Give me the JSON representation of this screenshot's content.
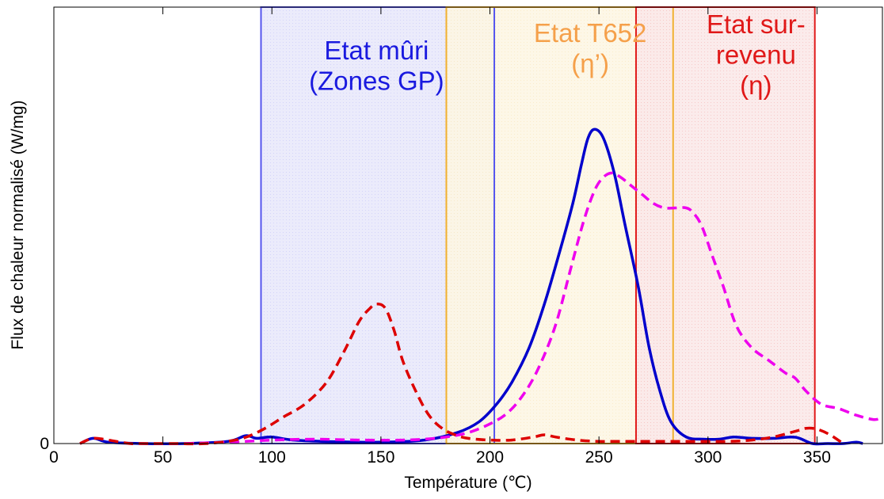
{
  "chart_data": {
    "type": "line",
    "xlabel": "Température (℃)",
    "ylabel": "Flux de chaleur normalisé (W/mg)",
    "xlim": [
      0,
      380
    ],
    "ylim": [
      0,
      1.0
    ],
    "x_ticks": [
      0,
      50,
      100,
      150,
      200,
      250,
      300,
      350
    ],
    "x_tick_labels": [
      "0",
      "50",
      "100",
      "150",
      "200",
      "250",
      "300",
      "350"
    ],
    "y_ticks": [
      0
    ],
    "y_tick_labels": [
      "0"
    ],
    "grid": false,
    "regions": [
      {
        "x": [
          95,
          202
        ],
        "fill": "#e9e9fb",
        "stroke": "#5555ee",
        "label_lines": [
          "Etat mûri",
          "(Zones GP)"
        ],
        "label_color": "#1a1adf",
        "label_x": 148,
        "label_y": [
          0.88,
          0.81
        ]
      },
      {
        "x": [
          180,
          284
        ],
        "fill": "#fdf6e4",
        "stroke": "#f0b030",
        "label_lines": [
          "Etat T652",
          "(η’)"
        ],
        "label_color": "#f5a04a",
        "label_x": 246,
        "label_y": [
          0.92,
          0.85
        ]
      },
      {
        "x": [
          267,
          349
        ],
        "fill": "#fbe9e9",
        "stroke": "#e01818",
        "label_lines": [
          "Etat sur-",
          "revenu",
          "(η)"
        ],
        "label_color": "#e01818",
        "label_x": 322,
        "label_y": [
          0.94,
          0.87,
          0.8
        ]
      }
    ],
    "series": [
      {
        "color": "#0000cc",
        "dash": "solid",
        "x": [
          12,
          18,
          25,
          40,
          60,
          80,
          88,
          93,
          100,
          110,
          130,
          150,
          170,
          185,
          195,
          203,
          210,
          218,
          225,
          232,
          238,
          242,
          245,
          248,
          252,
          257,
          262,
          268,
          273,
          278,
          283,
          290,
          298,
          305,
          312,
          320,
          330,
          338,
          342,
          348,
          355,
          362,
          368,
          371
        ],
        "y": [
          0.0,
          0.012,
          0.003,
          0.0,
          0.0,
          0.005,
          0.018,
          0.012,
          0.015,
          0.008,
          0.004,
          0.003,
          0.008,
          0.025,
          0.05,
          0.09,
          0.14,
          0.22,
          0.32,
          0.44,
          0.55,
          0.64,
          0.7,
          0.72,
          0.7,
          0.62,
          0.5,
          0.36,
          0.22,
          0.12,
          0.05,
          0.015,
          0.01,
          0.01,
          0.015,
          0.012,
          0.012,
          0.015,
          0.012,
          0.0,
          0.0,
          0.0,
          0.003,
          0.0
        ]
      },
      {
        "color": "#ee00ee",
        "dash": "dashed",
        "x": [
          60,
          80,
          100,
          120,
          140,
          160,
          170,
          180,
          190,
          200,
          208,
          215,
          222,
          230,
          237,
          243,
          248,
          252,
          256,
          260,
          265,
          270,
          275,
          280,
          285,
          290,
          293,
          297,
          302,
          307,
          313,
          320,
          328,
          336,
          340,
          345,
          352,
          360,
          368,
          376,
          380
        ],
        "y": [
          0.0,
          0.003,
          0.008,
          0.01,
          0.008,
          0.008,
          0.01,
          0.015,
          0.025,
          0.045,
          0.07,
          0.11,
          0.17,
          0.27,
          0.4,
          0.51,
          0.58,
          0.61,
          0.62,
          0.61,
          0.59,
          0.57,
          0.55,
          0.54,
          0.54,
          0.54,
          0.53,
          0.5,
          0.43,
          0.36,
          0.27,
          0.22,
          0.19,
          0.16,
          0.15,
          0.12,
          0.09,
          0.08,
          0.065,
          0.055,
          0.06
        ]
      },
      {
        "color": "#dd0000",
        "dash": "dashed",
        "x": [
          12,
          18,
          25,
          35,
          40,
          55,
          70,
          85,
          95,
          105,
          115,
          125,
          133,
          140,
          145,
          148,
          152,
          156,
          160,
          166,
          172,
          178,
          184,
          190,
          200,
          210,
          220,
          225,
          230,
          240,
          250,
          260,
          270,
          280,
          290,
          300,
          310,
          320,
          330,
          340,
          345,
          350,
          356,
          362
        ],
        "y": [
          0.0,
          0.012,
          0.008,
          0.0,
          0.0,
          0.0,
          0.0,
          0.01,
          0.03,
          0.06,
          0.09,
          0.14,
          0.21,
          0.28,
          0.31,
          0.32,
          0.31,
          0.26,
          0.19,
          0.12,
          0.065,
          0.035,
          0.02,
          0.012,
          0.008,
          0.008,
          0.015,
          0.02,
          0.015,
          0.008,
          0.005,
          0.005,
          0.005,
          0.005,
          0.005,
          0.005,
          0.005,
          0.008,
          0.015,
          0.028,
          0.035,
          0.033,
          0.02,
          0.0
        ]
      }
    ]
  }
}
